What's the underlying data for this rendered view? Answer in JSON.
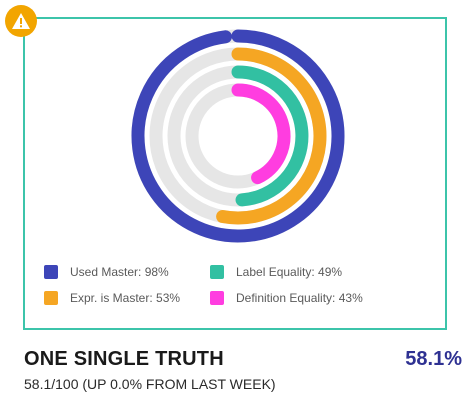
{
  "colors": {
    "frame": "#3cc4aa",
    "warning": "#f2a500",
    "track": "#e6e6e6",
    "value_text": "#2e3192"
  },
  "warning_badge": {
    "icon": "warning-triangle-icon"
  },
  "chart_data": {
    "type": "radial-bar",
    "max": 100,
    "series": [
      {
        "name": "Used Master: 98%",
        "value": 98,
        "color": "#3d45b8"
      },
      {
        "name": "Expr. is Master: 53%",
        "value": 53,
        "color": "#f5a623"
      },
      {
        "name": "Label Equality: 49%",
        "value": 49,
        "color": "#32c0a2"
      },
      {
        "name": "Definition Equality: 43%",
        "value": 43,
        "color": "#ff3de0"
      }
    ],
    "legend_position": "bottom"
  },
  "footer": {
    "title": "ONE SINGLE TRUTH",
    "value": "58.1%",
    "subtitle": "58.1/100 (UP 0.0% FROM LAST WEEK)"
  }
}
